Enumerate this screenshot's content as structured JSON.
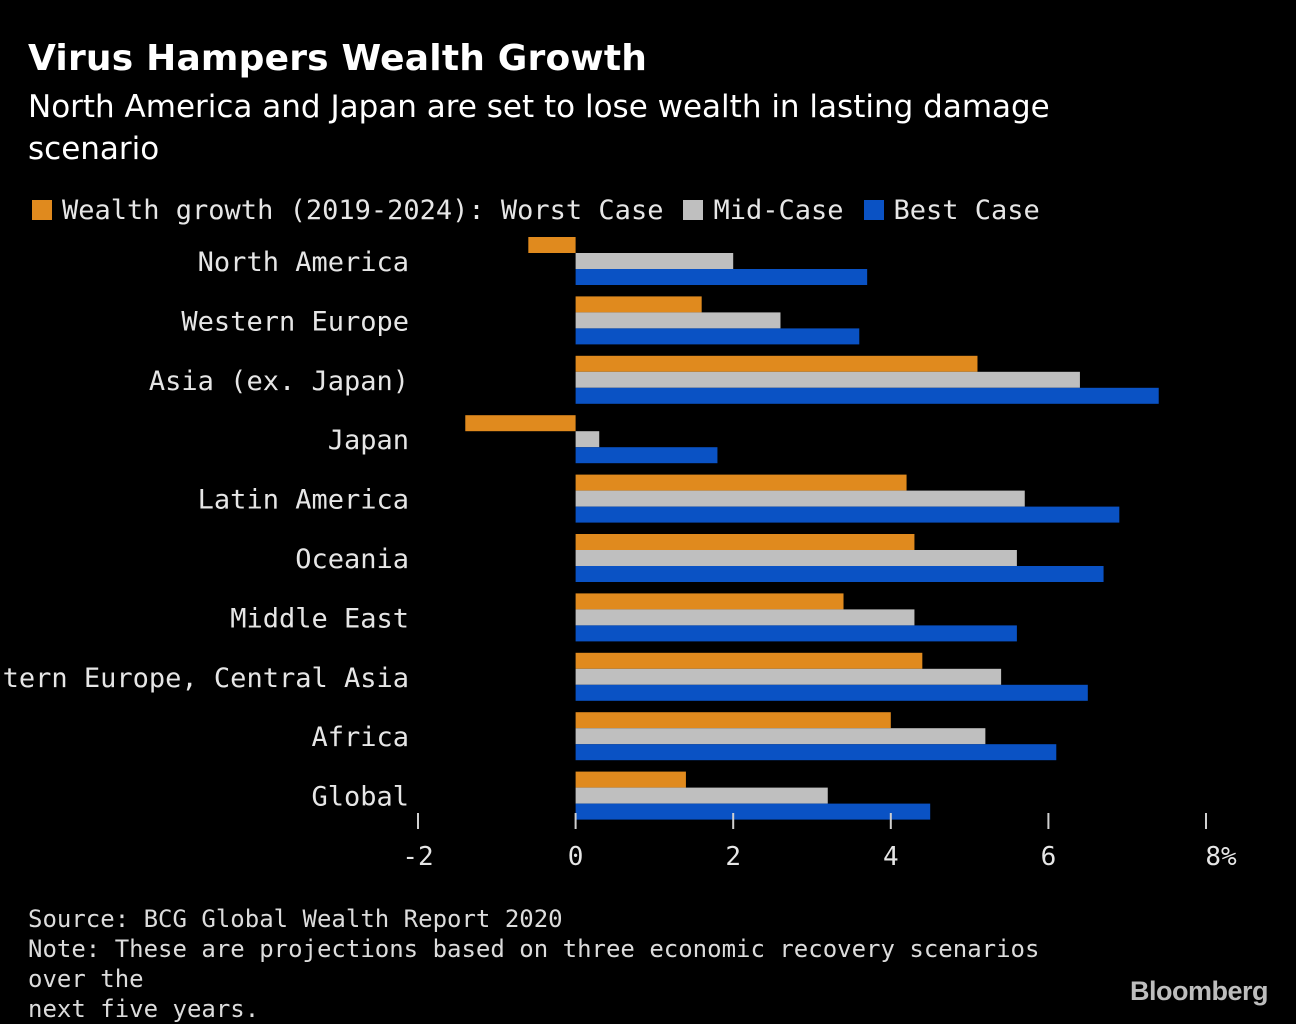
{
  "chart_data": {
    "type": "bar",
    "orientation": "horizontal",
    "title": "Virus Hampers Wealth Growth",
    "subtitle": "North America and Japan are set to lose wealth in lasting damage scenario",
    "categories": [
      "North America",
      "Western Europe",
      "Asia (ex. Japan)",
      "Japan",
      "Latin America",
      "Oceania",
      "Middle East",
      "Eastern Europe, Central Asia",
      "Africa",
      "Global"
    ],
    "series": [
      {
        "name": "Wealth growth (2019-2024): Worst Case",
        "color": "#e08a1e",
        "values": [
          -0.6,
          1.6,
          5.1,
          -1.4,
          4.2,
          4.3,
          3.4,
          4.4,
          4.0,
          1.4
        ]
      },
      {
        "name": "Mid-Case",
        "color": "#bfbfbf",
        "values": [
          2.0,
          2.6,
          6.4,
          0.3,
          5.7,
          5.6,
          4.3,
          5.4,
          5.2,
          3.2
        ]
      },
      {
        "name": "Best Case",
        "color": "#0a52c4",
        "values": [
          3.7,
          3.6,
          7.4,
          1.8,
          6.9,
          6.7,
          5.6,
          6.5,
          6.1,
          4.5
        ]
      }
    ],
    "xlim": [
      -2,
      8
    ],
    "xticks": [
      -2,
      0,
      2,
      4,
      6,
      8
    ],
    "xtick_labels": [
      "-2",
      "0",
      "2",
      "4",
      "6",
      "8%"
    ],
    "xlabel": "",
    "ylabel": "",
    "grid": false,
    "legend_position": "top-left"
  },
  "footer": {
    "source": "Source: BCG Global Wealth Report 2020",
    "note_line1": "Note: These are projections based on three economic recovery scenarios over the",
    "note_line2": "next five years."
  },
  "brand": "Bloomberg",
  "colors": {
    "background": "#000000",
    "text": "#e6e6e6",
    "worst": "#e08a1e",
    "mid": "#bfbfbf",
    "best": "#0a52c4"
  }
}
